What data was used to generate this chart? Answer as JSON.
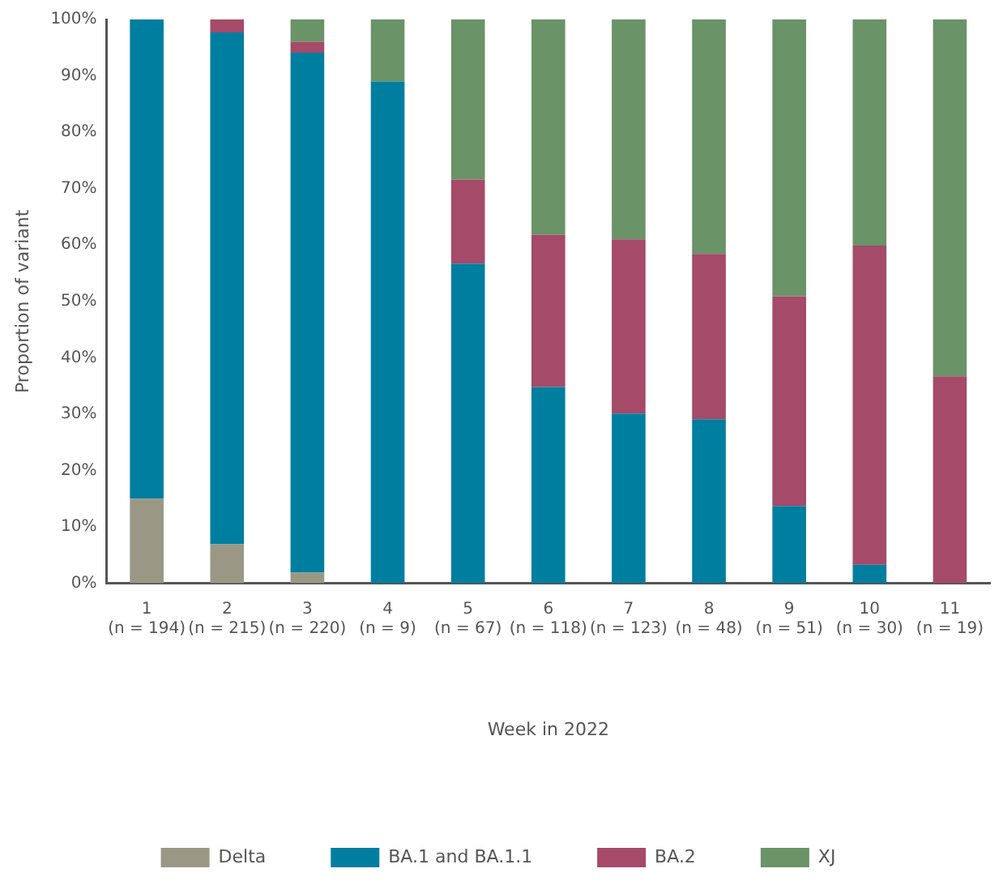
{
  "chart_data": {
    "type": "bar",
    "stacked": true,
    "xlabel": "Week in 2022",
    "ylabel": "Proportion of variant",
    "categories": [
      "1\n(n = 194)",
      "2\n(n = 215)",
      "3\n(n = 220)",
      "4\n(n = 9)",
      "5\n(n = 67)",
      "6\n(n = 118)",
      "7\n(n = 123)",
      "8\n(n = 48)",
      "9\n(n = 51)",
      "10\n(n = 30)",
      "11\n(n = 19)"
    ],
    "series": [
      {
        "name": "Delta",
        "color": "#9a9885",
        "values": [
          15.0,
          6.9,
          1.9,
          0,
          0,
          0,
          0,
          0,
          0,
          0,
          0
        ]
      },
      {
        "name": "BA.1 and BA.1.1",
        "color": "#007ea0",
        "values": [
          85.0,
          90.8,
          92.2,
          89.0,
          56.7,
          34.8,
          30.1,
          29.1,
          13.7,
          3.3,
          0
        ]
      },
      {
        "name": "BA.2",
        "color": "#a54a68",
        "values": [
          0,
          2.3,
          1.9,
          0,
          14.9,
          27.0,
          30.9,
          29.3,
          37.2,
          56.6,
          36.7
        ]
      },
      {
        "name": "XJ",
        "color": "#6a9368",
        "values": [
          0,
          0,
          4.0,
          11.0,
          28.4,
          38.2,
          39.0,
          41.6,
          49.1,
          40.1,
          63.3
        ]
      }
    ],
    "ylim": [
      0,
      100
    ],
    "yticks": [
      {
        "value": 0,
        "label": "0%"
      },
      {
        "value": 10,
        "label": "10%"
      },
      {
        "value": 20,
        "label": "20%"
      },
      {
        "value": 30,
        "label": "30%"
      },
      {
        "value": 40,
        "label": "40%"
      },
      {
        "value": 50,
        "label": "50%"
      },
      {
        "value": 60,
        "label": "60%"
      },
      {
        "value": 70,
        "label": "70%"
      },
      {
        "value": 80,
        "label": "80%"
      },
      {
        "value": 90,
        "label": "90%"
      },
      {
        "value": 100,
        "label": "100%"
      }
    ],
    "grid": false,
    "legend": "bottom"
  }
}
